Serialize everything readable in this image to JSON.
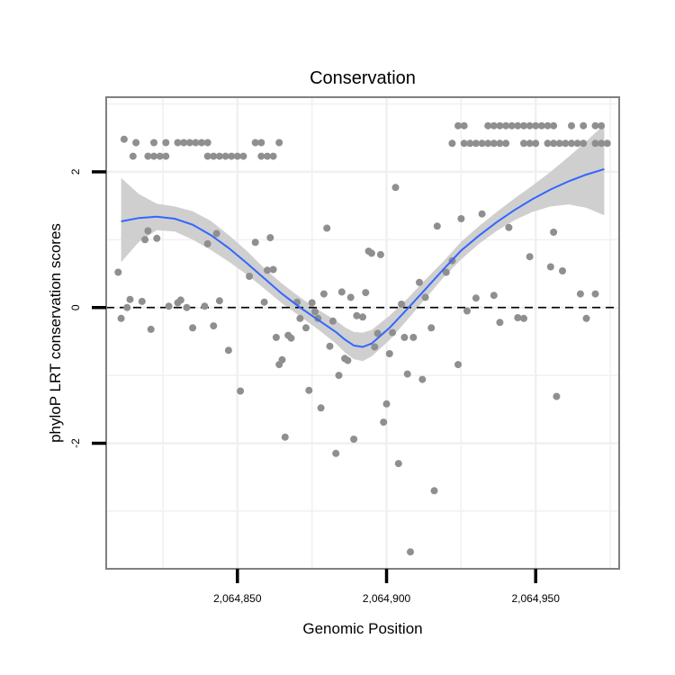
{
  "chart_data": {
    "type": "scatter",
    "title": "Conservation",
    "xlabel": "Genomic Position",
    "ylabel": "phyloP LRT conservation scores",
    "xlim": [
      2064806,
      2064978
    ],
    "ylim": [
      -3.85,
      3.1
    ],
    "grid": true,
    "x_ticks": [
      {
        "value": 2064850,
        "label": "2,064,850"
      },
      {
        "value": 2064900,
        "label": "2,064,900"
      },
      {
        "value": 2064950,
        "label": "2,064,950"
      }
    ],
    "y_ticks": [
      {
        "value": -2,
        "label": "-2"
      },
      {
        "value": 0,
        "label": "0"
      },
      {
        "value": 2,
        "label": "2"
      }
    ],
    "reference_line": {
      "y": 0,
      "style": "dashed"
    },
    "colors": {
      "points": "#8f8f8f",
      "smooth_line": "#3366ff",
      "ribbon": "#cfcfcf",
      "grid": "#f0f0f0",
      "panel_border": "#808080"
    },
    "points": [
      [
        2064812,
        2.48
      ],
      [
        2064816,
        2.43
      ],
      [
        2064822,
        2.43
      ],
      [
        2064826,
        2.43
      ],
      [
        2064830,
        2.43
      ],
      [
        2064832,
        2.43
      ],
      [
        2064834,
        2.43
      ],
      [
        2064836,
        2.43
      ],
      [
        2064838,
        2.43
      ],
      [
        2064840,
        2.43
      ],
      [
        2064856,
        2.43
      ],
      [
        2064858,
        2.43
      ],
      [
        2064864,
        2.43
      ],
      [
        2064815,
        2.23
      ],
      [
        2064820,
        2.23
      ],
      [
        2064822,
        2.23
      ],
      [
        2064824,
        2.23
      ],
      [
        2064826,
        2.23
      ],
      [
        2064840,
        2.23
      ],
      [
        2064842,
        2.23
      ],
      [
        2064844,
        2.23
      ],
      [
        2064846,
        2.23
      ],
      [
        2064848,
        2.23
      ],
      [
        2064850,
        2.23
      ],
      [
        2064852,
        2.23
      ],
      [
        2064858,
        2.23
      ],
      [
        2064860,
        2.23
      ],
      [
        2064862,
        2.23
      ],
      [
        2064924,
        2.68
      ],
      [
        2064926,
        2.68
      ],
      [
        2064934,
        2.68
      ],
      [
        2064936,
        2.68
      ],
      [
        2064938,
        2.68
      ],
      [
        2064940,
        2.68
      ],
      [
        2064942,
        2.68
      ],
      [
        2064944,
        2.68
      ],
      [
        2064946,
        2.68
      ],
      [
        2064948,
        2.68
      ],
      [
        2064950,
        2.68
      ],
      [
        2064952,
        2.68
      ],
      [
        2064954,
        2.68
      ],
      [
        2064956,
        2.68
      ],
      [
        2064962,
        2.68
      ],
      [
        2064966,
        2.68
      ],
      [
        2064970,
        2.68
      ],
      [
        2064972,
        2.68
      ],
      [
        2064922,
        2.42
      ],
      [
        2064926,
        2.42
      ],
      [
        2064928,
        2.42
      ],
      [
        2064930,
        2.42
      ],
      [
        2064932,
        2.42
      ],
      [
        2064934,
        2.42
      ],
      [
        2064936,
        2.42
      ],
      [
        2064938,
        2.42
      ],
      [
        2064940,
        2.42
      ],
      [
        2064946,
        2.42
      ],
      [
        2064948,
        2.42
      ],
      [
        2064950,
        2.42
      ],
      [
        2064954,
        2.42
      ],
      [
        2064956,
        2.42
      ],
      [
        2064958,
        2.42
      ],
      [
        2064960,
        2.42
      ],
      [
        2064962,
        2.42
      ],
      [
        2064964,
        2.42
      ],
      [
        2064966,
        2.42
      ],
      [
        2064970,
        2.42
      ],
      [
        2064972,
        2.42
      ],
      [
        2064974,
        2.42
      ],
      [
        2064810,
        0.52
      ],
      [
        2064811,
        -0.16
      ],
      [
        2064813,
        0.0
      ],
      [
        2064814,
        0.12
      ],
      [
        2064818,
        0.09
      ],
      [
        2064819,
        1.0
      ],
      [
        2064820,
        1.13
      ],
      [
        2064821,
        -0.32
      ],
      [
        2064823,
        1.02
      ],
      [
        2064827,
        0.02
      ],
      [
        2064830,
        0.07
      ],
      [
        2064831,
        0.11
      ],
      [
        2064833,
        0.0
      ],
      [
        2064835,
        -0.3
      ],
      [
        2064839,
        0.02
      ],
      [
        2064840,
        0.94
      ],
      [
        2064842,
        -0.27
      ],
      [
        2064843,
        1.09
      ],
      [
        2064844,
        0.1
      ],
      [
        2064847,
        -0.63
      ],
      [
        2064851,
        -1.23
      ],
      [
        2064854,
        0.46
      ],
      [
        2064856,
        0.96
      ],
      [
        2064859,
        0.08
      ],
      [
        2064860,
        0.55
      ],
      [
        2064861,
        1.03
      ],
      [
        2064862,
        0.56
      ],
      [
        2064863,
        -0.44
      ],
      [
        2064864,
        -0.84
      ],
      [
        2064865,
        -0.77
      ],
      [
        2064866,
        -1.91
      ],
      [
        2064867,
        -0.41
      ],
      [
        2064868,
        -0.45
      ],
      [
        2064870,
        0.08
      ],
      [
        2064871,
        -0.16
      ],
      [
        2064873,
        -0.3
      ],
      [
        2064874,
        -1.22
      ],
      [
        2064875,
        0.07
      ],
      [
        2064876,
        -0.06
      ],
      [
        2064877,
        -0.16
      ],
      [
        2064878,
        -1.48
      ],
      [
        2064879,
        0.2
      ],
      [
        2064880,
        1.17
      ],
      [
        2064881,
        -0.57
      ],
      [
        2064882,
        -0.2
      ],
      [
        2064883,
        -2.15
      ],
      [
        2064884,
        -1.0
      ],
      [
        2064885,
        0.23
      ],
      [
        2064886,
        -0.75
      ],
      [
        2064887,
        -0.78
      ],
      [
        2064888,
        0.15
      ],
      [
        2064889,
        -1.94
      ],
      [
        2064890,
        -0.12
      ],
      [
        2064892,
        -0.14
      ],
      [
        2064893,
        0.22
      ],
      [
        2064894,
        0.83
      ],
      [
        2064895,
        0.8
      ],
      [
        2064896,
        -0.58
      ],
      [
        2064897,
        -0.38
      ],
      [
        2064898,
        0.78
      ],
      [
        2064899,
        -1.69
      ],
      [
        2064900,
        -1.42
      ],
      [
        2064901,
        -0.68
      ],
      [
        2064902,
        -0.37
      ],
      [
        2064903,
        1.77
      ],
      [
        2064904,
        -2.3
      ],
      [
        2064905,
        0.05
      ],
      [
        2064906,
        -0.44
      ],
      [
        2064907,
        -0.98
      ],
      [
        2064908,
        -3.6
      ],
      [
        2064909,
        -0.44
      ],
      [
        2064911,
        0.37
      ],
      [
        2064912,
        -1.06
      ],
      [
        2064913,
        0.15
      ],
      [
        2064915,
        -0.3
      ],
      [
        2064916,
        -2.7
      ],
      [
        2064917,
        1.2
      ],
      [
        2064920,
        0.52
      ],
      [
        2064922,
        0.69
      ],
      [
        2064924,
        -0.84
      ],
      [
        2064925,
        1.31
      ],
      [
        2064927,
        -0.05
      ],
      [
        2064930,
        0.14
      ],
      [
        2064932,
        1.38
      ],
      [
        2064936,
        0.18
      ],
      [
        2064938,
        -0.22
      ],
      [
        2064941,
        1.18
      ],
      [
        2064944,
        -0.15
      ],
      [
        2064946,
        -0.16
      ],
      [
        2064948,
        0.75
      ],
      [
        2064955,
        0.6
      ],
      [
        2064956,
        1.11
      ],
      [
        2064957,
        -1.31
      ],
      [
        2064959,
        0.54
      ],
      [
        2064965,
        0.2
      ],
      [
        2064967,
        -0.16
      ],
      [
        2064970,
        0.2
      ]
    ],
    "smooth": {
      "x": [
        2064811,
        2064817,
        2064823,
        2064829,
        2064835,
        2064841,
        2064847,
        2064853,
        2064859,
        2064865,
        2064871,
        2064877,
        2064883,
        2064886,
        2064889,
        2064892,
        2064895,
        2064901,
        2064907,
        2064913,
        2064919,
        2064925,
        2064931,
        2064937,
        2064943,
        2064949,
        2064955,
        2064961,
        2064967,
        2064973
      ],
      "y": [
        1.27,
        1.32,
        1.34,
        1.31,
        1.22,
        1.07,
        0.88,
        0.66,
        0.43,
        0.2,
        0.0,
        -0.18,
        -0.36,
        -0.47,
        -0.56,
        -0.58,
        -0.53,
        -0.3,
        -0.02,
        0.27,
        0.56,
        0.84,
        1.06,
        1.26,
        1.44,
        1.6,
        1.74,
        1.86,
        1.96,
        2.04
      ],
      "lower": [
        0.67,
        0.97,
        1.14,
        1.12,
        1.0,
        0.85,
        0.68,
        0.49,
        0.28,
        0.06,
        -0.13,
        -0.32,
        -0.53,
        -0.66,
        -0.76,
        -0.79,
        -0.72,
        -0.48,
        -0.18,
        0.13,
        0.44,
        0.71,
        0.94,
        1.13,
        1.29,
        1.41,
        1.49,
        1.52,
        1.47,
        1.36
      ],
      "upper": [
        1.91,
        1.67,
        1.53,
        1.49,
        1.42,
        1.28,
        1.07,
        0.84,
        0.58,
        0.35,
        0.15,
        -0.03,
        -0.19,
        -0.29,
        -0.36,
        -0.37,
        -0.33,
        -0.12,
        0.13,
        0.41,
        0.68,
        0.97,
        1.2,
        1.41,
        1.61,
        1.8,
        2.0,
        2.22,
        2.45,
        2.7
      ]
    }
  }
}
